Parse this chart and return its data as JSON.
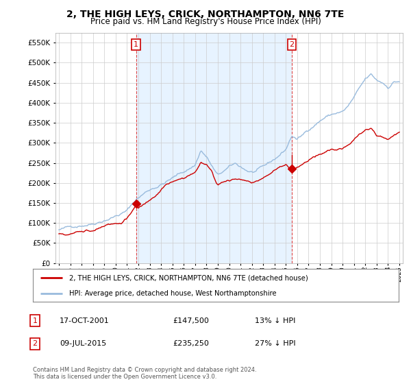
{
  "title": "2, THE HIGH LEYS, CRICK, NORTHAMPTON, NN6 7TE",
  "subtitle": "Price paid vs. HM Land Registry's House Price Index (HPI)",
  "legend_label_red": "2, THE HIGH LEYS, CRICK, NORTHAMPTON, NN6 7TE (detached house)",
  "legend_label_blue": "HPI: Average price, detached house, West Northamptonshire",
  "transaction1": {
    "label": "1",
    "date": "17-OCT-2001",
    "price": "£147,500",
    "hpi": "13% ↓ HPI",
    "year": 2001.8,
    "value": 147500
  },
  "transaction2": {
    "label": "2",
    "date": "09-JUL-2015",
    "price": "£235,250",
    "hpi": "27% ↓ HPI",
    "year": 2015.53,
    "value": 235250
  },
  "footnote": "Contains HM Land Registry data © Crown copyright and database right 2024.\nThis data is licensed under the Open Government Licence v3.0.",
  "ylim": [
    0,
    575000
  ],
  "yticks": [
    0,
    50000,
    100000,
    150000,
    200000,
    250000,
    300000,
    350000,
    400000,
    450000,
    500000,
    550000
  ],
  "xlim_left": 1994.7,
  "xlim_right": 2025.3,
  "background_color": "#ffffff",
  "plot_bg_color": "#ffffff",
  "shaded_color": "#ddeeff",
  "grid_color": "#cccccc",
  "red_color": "#cc0000",
  "blue_color": "#99bbdd",
  "vline_color": "#dd4444"
}
